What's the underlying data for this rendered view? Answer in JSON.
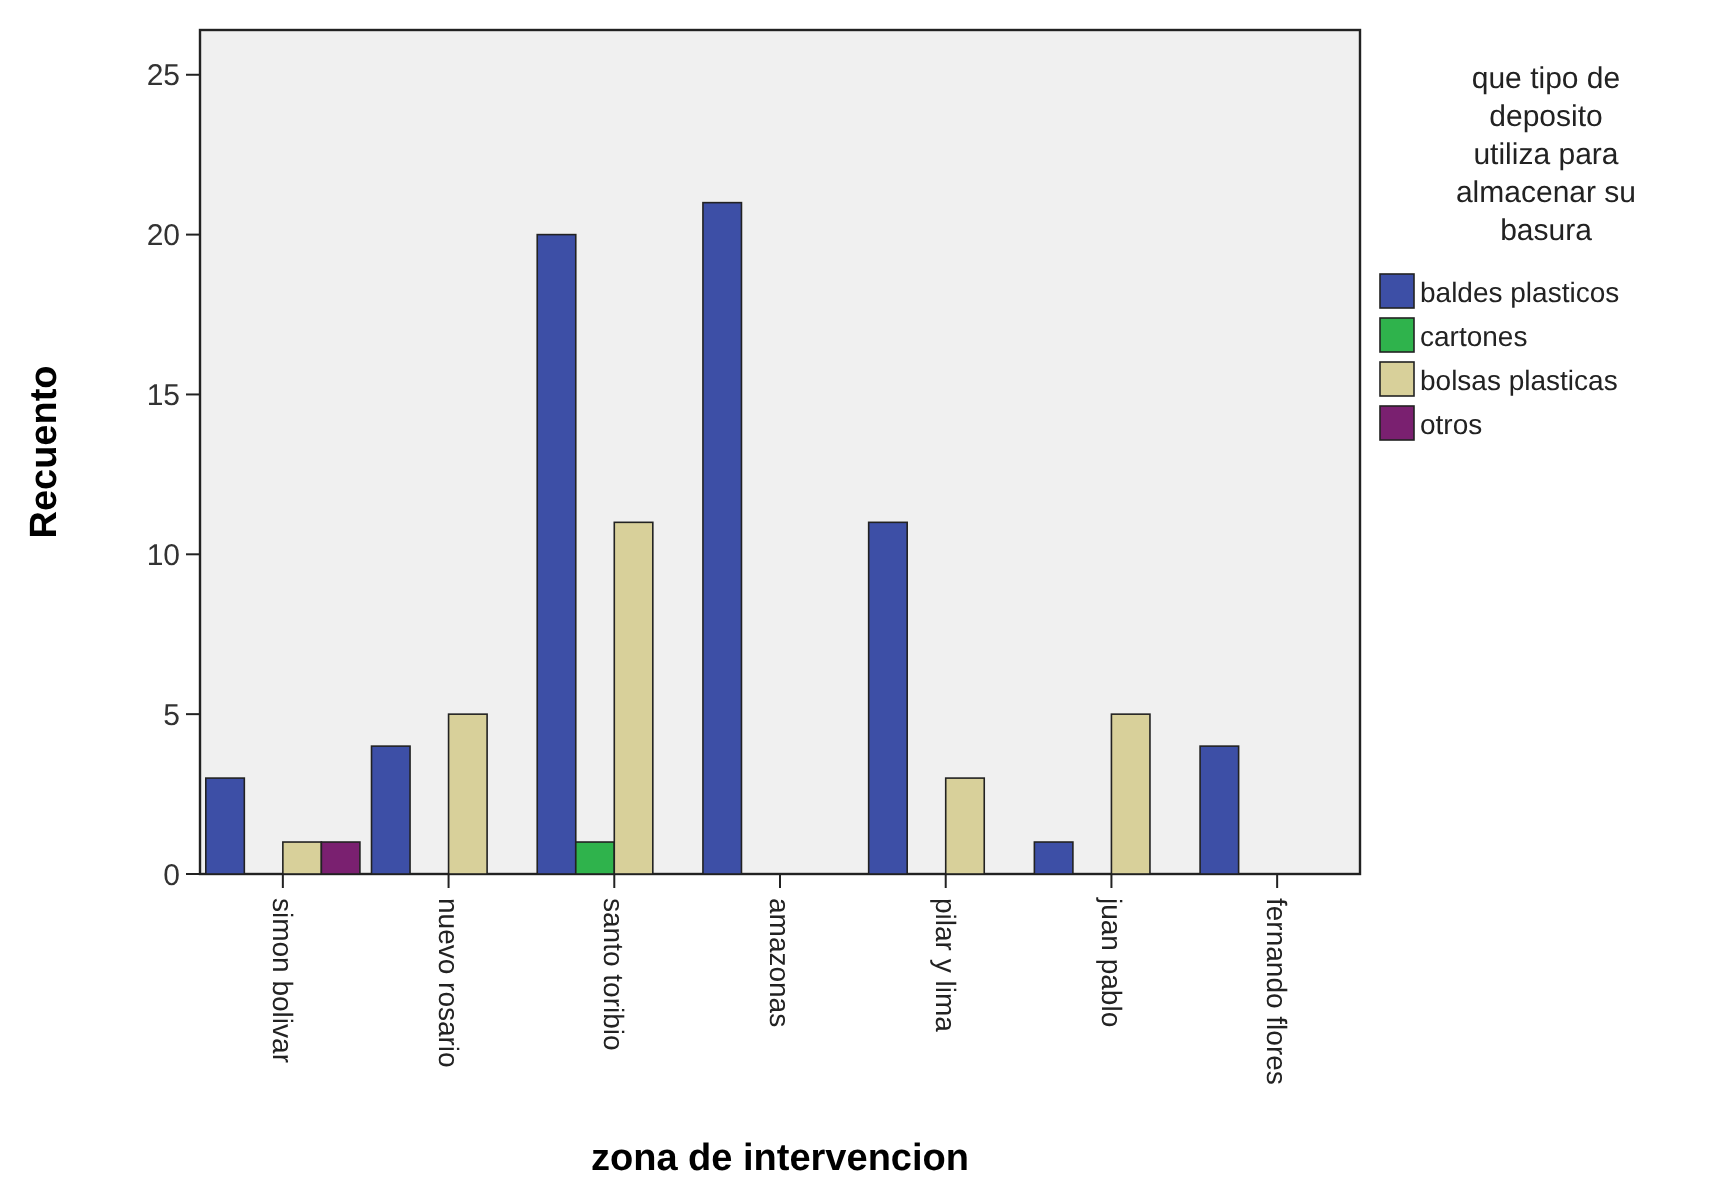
{
  "chart_data": {
    "type": "bar",
    "xlabel": "zona de intervencion",
    "ylabel": "Recuento",
    "legend_title": "que tipo de deposito utiliza para almacenar su basura",
    "legend": "right",
    "categories": [
      "simon bolivar",
      "nuevo rosario",
      "santo toribio",
      "amazonas",
      "pilar y lima",
      "juan pablo",
      "fernando flores"
    ],
    "ylim": [
      0,
      26.4
    ],
    "yticks": [
      0,
      5,
      10,
      15,
      20,
      25
    ],
    "series": [
      {
        "name": "baldes plasticos",
        "color": "#3d4fa6",
        "values": [
          3,
          4,
          20,
          21,
          11,
          1,
          4
        ]
      },
      {
        "name": "cartones",
        "color": "#2fb34c",
        "values": [
          null,
          null,
          1,
          null,
          null,
          null,
          null
        ]
      },
      {
        "name": "bolsas plasticas",
        "color": "#d8d09a",
        "values": [
          1,
          5,
          11,
          null,
          3,
          5,
          null
        ]
      },
      {
        "name": "otros",
        "color": "#7a2070",
        "values": [
          1,
          null,
          null,
          null,
          null,
          null,
          null
        ]
      }
    ]
  }
}
